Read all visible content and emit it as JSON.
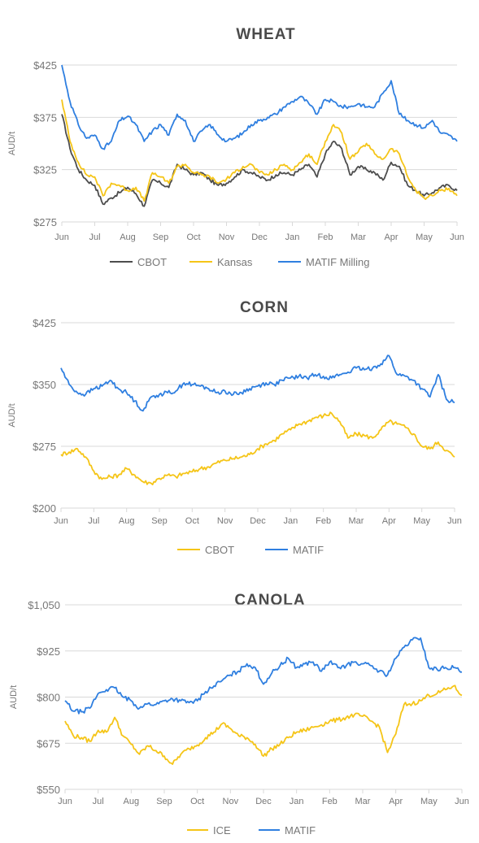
{
  "colors": {
    "black": "#4d4d4d",
    "yellow": "#f5c518",
    "blue": "#2f7fe0",
    "grid": "#d9d9d9",
    "text": "#777777",
    "title": "#4a4a4a"
  },
  "chart_data": [
    {
      "type": "line",
      "title": "WHEAT",
      "ylabel": "AUD/t",
      "ylim": [
        275,
        425
      ],
      "yticks": [
        275,
        325,
        375,
        425
      ],
      "ytick_labels": [
        "$275",
        "$325",
        "$375",
        "$425"
      ],
      "xtick_labels": [
        "Jun",
        "Jul",
        "Aug",
        "Sep",
        "Oct",
        "Nov",
        "Dec",
        "Jan",
        "Feb",
        "Mar",
        "Apr",
        "May",
        "Jun"
      ],
      "grid": true,
      "legend_position": "bottom",
      "x": [
        0,
        0.25,
        0.5,
        0.75,
        1,
        1.25,
        1.5,
        1.75,
        2,
        2.25,
        2.5,
        2.75,
        3,
        3.25,
        3.5,
        3.75,
        4,
        4.25,
        4.5,
        4.75,
        5,
        5.25,
        5.5,
        5.75,
        6,
        6.25,
        6.5,
        6.75,
        7,
        7.25,
        7.5,
        7.75,
        8,
        8.25,
        8.5,
        8.75,
        9,
        9.25,
        9.5,
        9.75,
        10,
        10.25,
        10.5,
        10.75,
        11,
        11.25,
        11.5,
        11.75,
        12
      ],
      "series": [
        {
          "name": "CBOT",
          "color": "#4d4d4d",
          "values": [
            378,
            345,
            325,
            315,
            310,
            292,
            298,
            303,
            308,
            302,
            290,
            315,
            312,
            308,
            330,
            325,
            320,
            322,
            315,
            310,
            312,
            318,
            325,
            322,
            318,
            315,
            320,
            322,
            320,
            325,
            330,
            318,
            340,
            352,
            345,
            320,
            328,
            325,
            322,
            315,
            332,
            328,
            310,
            305,
            300,
            303,
            308,
            310,
            305
          ]
        },
        {
          "name": "Kansas",
          "color": "#f5c518",
          "values": [
            392,
            352,
            332,
            320,
            318,
            300,
            312,
            310,
            305,
            308,
            295,
            322,
            318,
            312,
            328,
            330,
            322,
            320,
            318,
            312,
            316,
            322,
            328,
            330,
            322,
            320,
            325,
            330,
            325,
            332,
            340,
            330,
            352,
            368,
            360,
            335,
            342,
            350,
            340,
            335,
            345,
            340,
            318,
            305,
            298,
            300,
            305,
            307,
            300
          ]
        },
        {
          "name": "MATIF Milling",
          "color": "#2f7fe0",
          "values": [
            425,
            390,
            368,
            355,
            358,
            345,
            352,
            372,
            376,
            368,
            352,
            362,
            368,
            358,
            378,
            372,
            352,
            362,
            368,
            358,
            352,
            355,
            360,
            368,
            372,
            375,
            378,
            385,
            390,
            395,
            388,
            378,
            392,
            390,
            385,
            385,
            388,
            385,
            385,
            398,
            410,
            378,
            372,
            368,
            365,
            372,
            360,
            358,
            352
          ]
        }
      ]
    },
    {
      "type": "line",
      "title": "CORN",
      "ylabel": "AUD/t",
      "ylim": [
        200,
        425
      ],
      "yticks": [
        200,
        275,
        350,
        425
      ],
      "ytick_labels": [
        "$200",
        "$275",
        "$350",
        "$425"
      ],
      "xtick_labels": [
        "Jun",
        "Jul",
        "Aug",
        "Sep",
        "Oct",
        "Nov",
        "Dec",
        "Jan",
        "Feb",
        "Mar",
        "Apr",
        "May",
        "Jun"
      ],
      "grid": true,
      "legend_position": "bottom",
      "x": [
        0,
        0.25,
        0.5,
        0.75,
        1,
        1.25,
        1.5,
        1.75,
        2,
        2.25,
        2.5,
        2.75,
        3,
        3.25,
        3.5,
        3.75,
        4,
        4.25,
        4.5,
        4.75,
        5,
        5.25,
        5.5,
        5.75,
        6,
        6.25,
        6.5,
        6.75,
        7,
        7.25,
        7.5,
        7.75,
        8,
        8.25,
        8.5,
        8.75,
        9,
        9.25,
        9.5,
        9.75,
        10,
        10.25,
        10.5,
        10.75,
        11,
        11.25,
        11.5,
        11.75,
        12
      ],
      "series": [
        {
          "name": "CBOT",
          "color": "#f5c518",
          "values": [
            265,
            268,
            272,
            262,
            245,
            235,
            238,
            240,
            248,
            240,
            232,
            230,
            236,
            240,
            238,
            242,
            244,
            248,
            250,
            255,
            258,
            260,
            262,
            265,
            272,
            278,
            282,
            290,
            295,
            302,
            305,
            310,
            312,
            315,
            305,
            285,
            290,
            288,
            285,
            295,
            305,
            302,
            298,
            290,
            275,
            272,
            280,
            270,
            262
          ]
        },
        {
          "name": "MATIF",
          "color": "#2f7fe0",
          "values": [
            370,
            350,
            340,
            338,
            345,
            348,
            355,
            345,
            340,
            330,
            318,
            335,
            338,
            340,
            342,
            352,
            350,
            348,
            345,
            340,
            342,
            338,
            340,
            345,
            348,
            352,
            350,
            355,
            358,
            360,
            358,
            362,
            360,
            358,
            362,
            365,
            370,
            368,
            370,
            375,
            385,
            362,
            360,
            355,
            345,
            335,
            362,
            332,
            328
          ]
        }
      ]
    },
    {
      "type": "line",
      "title": "CANOLA",
      "ylabel": "AUD/t",
      "ylim": [
        550,
        1050
      ],
      "yticks": [
        550,
        675,
        800,
        925,
        1050
      ],
      "ytick_labels": [
        "$550",
        "$675",
        "$800",
        "$925",
        "$1,050"
      ],
      "xtick_labels": [
        "Jun",
        "Jul",
        "Aug",
        "Sep",
        "Oct",
        "Nov",
        "Dec",
        "Jan",
        "Feb",
        "Mar",
        "Apr",
        "May",
        "Jun"
      ],
      "grid": true,
      "legend_position": "bottom",
      "x": [
        0,
        0.25,
        0.5,
        0.75,
        1,
        1.25,
        1.5,
        1.75,
        2,
        2.25,
        2.5,
        2.75,
        3,
        3.25,
        3.5,
        3.75,
        4,
        4.25,
        4.5,
        4.75,
        5,
        5.25,
        5.5,
        5.75,
        6,
        6.25,
        6.5,
        6.75,
        7,
        7.25,
        7.5,
        7.75,
        8,
        8.25,
        8.5,
        8.75,
        9,
        9.25,
        9.5,
        9.75,
        10,
        10.25,
        10.5,
        10.75,
        11,
        11.25,
        11.5,
        11.75,
        12
      ],
      "series": [
        {
          "name": "ICE",
          "color": "#f5c518",
          "values": [
            735,
            695,
            690,
            680,
            710,
            705,
            745,
            695,
            672,
            645,
            668,
            655,
            640,
            618,
            645,
            660,
            670,
            690,
            705,
            728,
            715,
            695,
            690,
            672,
            640,
            660,
            672,
            690,
            705,
            710,
            718,
            725,
            735,
            738,
            745,
            752,
            748,
            735,
            720,
            650,
            700,
            780,
            782,
            790,
            805,
            810,
            820,
            830,
            805
          ]
        },
        {
          "name": "MATIF",
          "color": "#2f7fe0",
          "values": [
            790,
            762,
            760,
            770,
            810,
            820,
            825,
            800,
            790,
            770,
            782,
            780,
            790,
            795,
            790,
            785,
            790,
            815,
            830,
            845,
            860,
            870,
            890,
            880,
            835,
            865,
            885,
            905,
            880,
            890,
            895,
            870,
            895,
            880,
            885,
            895,
            890,
            885,
            870,
            860,
            905,
            935,
            955,
            960,
            880,
            875,
            880,
            880,
            868
          ]
        }
      ]
    }
  ]
}
